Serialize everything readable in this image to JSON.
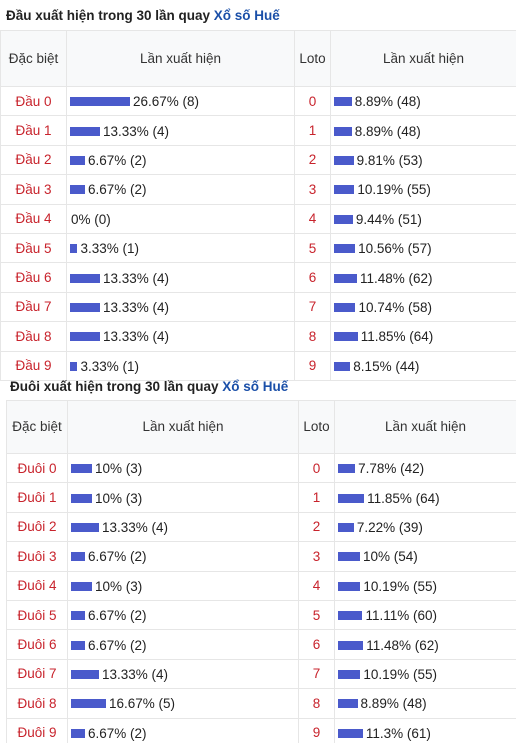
{
  "dau": {
    "title_prefix": "Đầu xuất hiện trong 30 lần quay ",
    "title_link": "Xổ số Huế",
    "col_special": "Đặc biệt",
    "col_appear": "Lần xuất hiện",
    "col_loto": "Loto",
    "col_appear2": "Lần xuất hiện",
    "rows": [
      {
        "label": "Đầu 0",
        "text": "26.67% (8)",
        "pct": 26.67,
        "loto": "0",
        "loto_text": "8.89% (48)",
        "loto_pct": 8.89
      },
      {
        "label": "Đầu 1",
        "text": "13.33% (4)",
        "pct": 13.33,
        "loto": "1",
        "loto_text": "8.89% (48)",
        "loto_pct": 8.89
      },
      {
        "label": "Đầu 2",
        "text": "6.67% (2)",
        "pct": 6.67,
        "loto": "2",
        "loto_text": "9.81% (53)",
        "loto_pct": 9.81
      },
      {
        "label": "Đầu 3",
        "text": "6.67% (2)",
        "pct": 6.67,
        "loto": "3",
        "loto_text": "10.19% (55)",
        "loto_pct": 10.19
      },
      {
        "label": "Đầu 4",
        "text": "0% (0)",
        "pct": 0,
        "loto": "4",
        "loto_text": "9.44% (51)",
        "loto_pct": 9.44
      },
      {
        "label": "Đầu 5",
        "text": "3.33% (1)",
        "pct": 3.33,
        "loto": "5",
        "loto_text": "10.56% (57)",
        "loto_pct": 10.56
      },
      {
        "label": "Đầu 6",
        "text": "13.33% (4)",
        "pct": 13.33,
        "loto": "6",
        "loto_text": "11.48% (62)",
        "loto_pct": 11.48
      },
      {
        "label": "Đầu 7",
        "text": "13.33% (4)",
        "pct": 13.33,
        "loto": "7",
        "loto_text": "10.74% (58)",
        "loto_pct": 10.74
      },
      {
        "label": "Đầu 8",
        "text": "13.33% (4)",
        "pct": 13.33,
        "loto": "8",
        "loto_text": "11.85% (64)",
        "loto_pct": 11.85
      },
      {
        "label": "Đầu 9",
        "text": "3.33% (1)",
        "pct": 3.33,
        "loto": "9",
        "loto_text": "8.15% (44)",
        "loto_pct": 8.15
      }
    ]
  },
  "duoi": {
    "title_prefix": "Đuôi xuất hiện trong 30 lần quay ",
    "title_link": "Xổ số Huế",
    "col_special": "Đặc biệt",
    "col_appear": "Lần xuất hiện",
    "col_loto": "Loto",
    "col_appear2": "Lần xuất hiện",
    "rows": [
      {
        "label": "Đuôi 0",
        "text": "10% (3)",
        "pct": 10,
        "loto": "0",
        "loto_text": "7.78% (42)",
        "loto_pct": 7.78
      },
      {
        "label": "Đuôi 1",
        "text": "10% (3)",
        "pct": 10,
        "loto": "1",
        "loto_text": "11.85% (64)",
        "loto_pct": 11.85
      },
      {
        "label": "Đuôi 2",
        "text": "13.33% (4)",
        "pct": 13.33,
        "loto": "2",
        "loto_text": "7.22% (39)",
        "loto_pct": 7.22
      },
      {
        "label": "Đuôi 3",
        "text": "6.67% (2)",
        "pct": 6.67,
        "loto": "3",
        "loto_text": "10% (54)",
        "loto_pct": 10
      },
      {
        "label": "Đuôi 4",
        "text": "10% (3)",
        "pct": 10,
        "loto": "4",
        "loto_text": "10.19% (55)",
        "loto_pct": 10.19
      },
      {
        "label": "Đuôi 5",
        "text": "6.67% (2)",
        "pct": 6.67,
        "loto": "5",
        "loto_text": "11.11% (60)",
        "loto_pct": 11.11
      },
      {
        "label": "Đuôi 6",
        "text": "6.67% (2)",
        "pct": 6.67,
        "loto": "6",
        "loto_text": "11.48% (62)",
        "loto_pct": 11.48
      },
      {
        "label": "Đuôi 7",
        "text": "13.33% (4)",
        "pct": 13.33,
        "loto": "7",
        "loto_text": "10.19% (55)",
        "loto_pct": 10.19
      },
      {
        "label": "Đuôi 8",
        "text": "16.67% (5)",
        "pct": 16.67,
        "loto": "8",
        "loto_text": "8.89% (48)",
        "loto_pct": 8.89
      },
      {
        "label": "Đuôi 9",
        "text": "6.67% (2)",
        "pct": 6.67,
        "loto": "9",
        "loto_text": "11.3% (61)",
        "loto_pct": 11.3
      }
    ]
  },
  "colors": {
    "bar": "#4a5acb",
    "label": "#c8232c",
    "link": "#1a4fa8"
  }
}
